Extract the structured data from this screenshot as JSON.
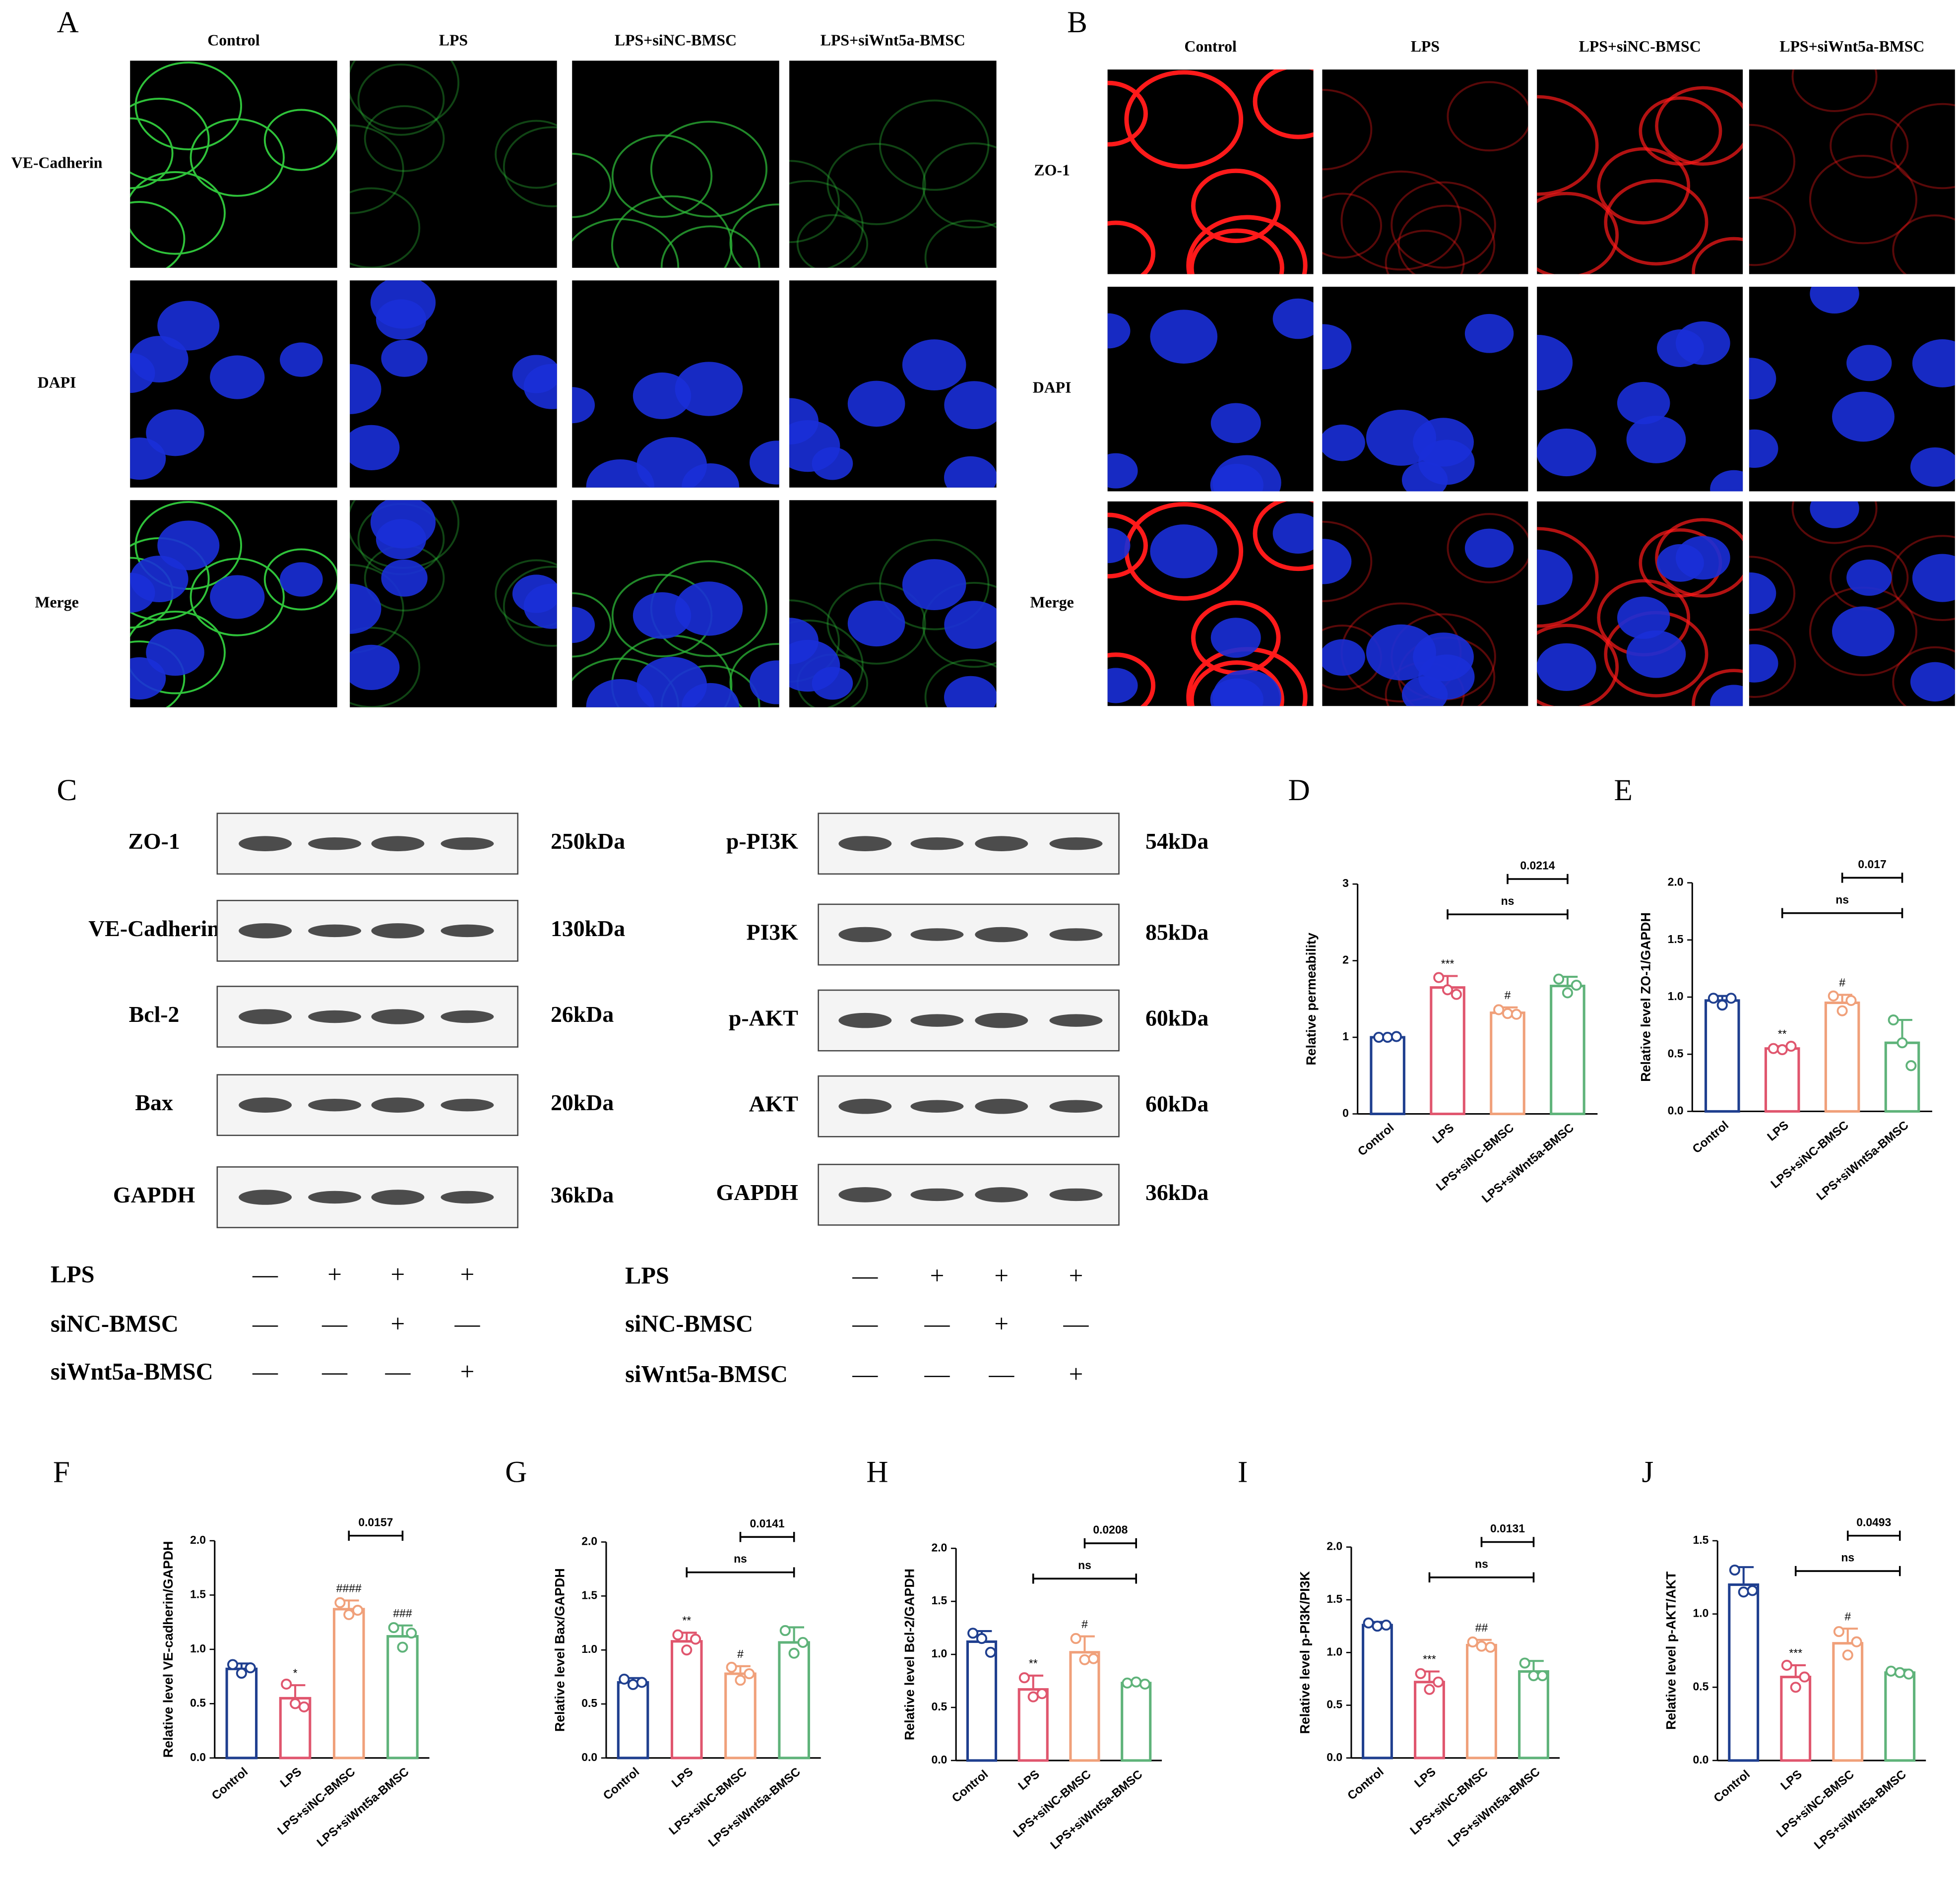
{
  "panel_a": {
    "label": "A",
    "columns": [
      "Control",
      "LPS",
      "LPS+siNC-BMSC",
      "LPS+siWnt5a-BMSC"
    ],
    "rows": [
      "VE-Cadherin",
      "DAPI",
      "Merge"
    ]
  },
  "panel_b": {
    "label": "B",
    "columns": [
      "Control",
      "LPS",
      "LPS+siNC-BMSC",
      "LPS+siWnt5a-BMSC"
    ],
    "rows": [
      "ZO-1",
      "DAPI",
      "Merge"
    ]
  },
  "panel_c": {
    "label": "C",
    "left_blots": [
      {
        "protein": "ZO-1",
        "size": "250kDa"
      },
      {
        "protein": "VE-Cadherin",
        "size": "130kDa"
      },
      {
        "protein": "Bcl-2",
        "size": "26kDa"
      },
      {
        "protein": "Bax",
        "size": "20kDa"
      },
      {
        "protein": "GAPDH",
        "size": "36kDa"
      }
    ],
    "right_blots": [
      {
        "protein": "p-PI3K",
        "size": "54kDa"
      },
      {
        "protein": "PI3K",
        "size": "85kDa"
      },
      {
        "protein": "p-AKT",
        "size": "60kDa"
      },
      {
        "protein": "AKT",
        "size": "60kDa"
      },
      {
        "protein": "GAPDH",
        "size": "36kDa"
      }
    ],
    "treatments": [
      {
        "name": "LPS",
        "marks": [
          "—",
          "+",
          "+",
          "+"
        ]
      },
      {
        "name": "siNC-BMSC",
        "marks": [
          "—",
          "—",
          "+",
          "—"
        ]
      },
      {
        "name": "siWnt5a-BMSC",
        "marks": [
          "—",
          "—",
          "—",
          "+"
        ]
      }
    ]
  },
  "chart_data": [
    {
      "type": "bar",
      "label": "D",
      "y_label": "Relative permeability",
      "categories": [
        "Control",
        "LPS",
        "LPS+siNC-BMSC",
        "LPS+siWnt5a-BMSC"
      ],
      "colors": [
        "#1f3f8f",
        "#e0566e",
        "#f0a07a",
        "#5fb37a"
      ],
      "values": [
        1.0,
        1.65,
        1.32,
        1.67
      ],
      "errors": [
        0.02,
        0.15,
        0.07,
        0.12
      ],
      "points": [
        [
          1.0,
          1.0,
          1.01
        ],
        [
          1.78,
          1.62,
          1.56
        ],
        [
          1.36,
          1.31,
          1.3
        ],
        [
          1.76,
          1.58,
          1.68
        ]
      ],
      "annotations": [
        null,
        "***",
        "#",
        null
      ],
      "comparisons": [
        {
          "between": [
            "LPS",
            "LPS+siWnt5a-BMSC"
          ],
          "label": "ns"
        },
        {
          "between": [
            "LPS+siNC-BMSC",
            "LPS+siWnt5a-BMSC"
          ],
          "label": "0.0214"
        }
      ],
      "ylim": [
        0,
        3
      ],
      "yticks": [
        0,
        1,
        2,
        3
      ]
    },
    {
      "type": "bar",
      "label": "E",
      "y_label": "Relative level ZO-1/GAPDH",
      "categories": [
        "Control",
        "LPS",
        "LPS+siNC-BMSC",
        "LPS+siWnt5a-BMSC"
      ],
      "colors": [
        "#1f3f8f",
        "#e0566e",
        "#f0a07a",
        "#5fb37a"
      ],
      "values": [
        0.97,
        0.55,
        0.95,
        0.6
      ],
      "errors": [
        0.04,
        0.02,
        0.07,
        0.2
      ],
      "points": [
        [
          0.99,
          0.93,
          0.99
        ],
        [
          0.55,
          0.54,
          0.57
        ],
        [
          1.01,
          0.88,
          0.97
        ],
        [
          0.8,
          0.6,
          0.4
        ]
      ],
      "annotations": [
        null,
        "**",
        "#",
        null
      ],
      "comparisons": [
        {
          "between": [
            "LPS",
            "LPS+siWnt5a-BMSC"
          ],
          "label": "ns"
        },
        {
          "between": [
            "LPS+siNC-BMSC",
            "LPS+siWnt5a-BMSC"
          ],
          "label": "0.017"
        }
      ],
      "ylim": [
        0,
        2
      ],
      "yticks": [
        {
          "value": 0,
          "label": "0.0"
        },
        0.5,
        {
          "value": 1,
          "label": "1.0"
        },
        1.5,
        {
          "value": 2,
          "label": "2.0"
        }
      ]
    },
    {
      "type": "bar",
      "label": "F",
      "y_label": "Relative level VE-cadherin/GAPDH",
      "categories": [
        "Control",
        "LPS",
        "LPS+siNC-BMSC",
        "LPS+siWnt5a-BMSC"
      ],
      "colors": [
        "#1f3f8f",
        "#e0566e",
        "#f0a07a",
        "#5fb37a"
      ],
      "values": [
        0.82,
        0.55,
        1.37,
        1.12
      ],
      "errors": [
        0.05,
        0.12,
        0.08,
        0.1
      ],
      "points": [
        [
          0.86,
          0.78,
          0.83
        ],
        [
          0.68,
          0.5,
          0.47
        ],
        [
          1.43,
          1.32,
          1.36
        ],
        [
          1.2,
          1.02,
          1.15
        ]
      ],
      "annotations": [
        null,
        "*",
        "####",
        "###"
      ],
      "comparisons": [
        {
          "between": [
            "LPS+siNC-BMSC",
            "LPS+siWnt5a-BMSC"
          ],
          "label": "0.0157"
        }
      ],
      "ylim": [
        0,
        2
      ],
      "yticks": [
        {
          "value": 0,
          "label": "0.0"
        },
        0.5,
        {
          "value": 1,
          "label": "1.0"
        },
        1.5,
        {
          "value": 2,
          "label": "2.0"
        }
      ]
    },
    {
      "type": "bar",
      "label": "G",
      "y_label": "Relative level Bax/GAPDH",
      "categories": [
        "Control",
        "LPS",
        "LPS+siNC-BMSC",
        "LPS+siWnt5a-BMSC"
      ],
      "colors": [
        "#1f3f8f",
        "#e0566e",
        "#f0a07a",
        "#5fb37a"
      ],
      "values": [
        0.7,
        1.08,
        0.78,
        1.07
      ],
      "errors": [
        0.04,
        0.08,
        0.07,
        0.14
      ],
      "points": [
        [
          0.73,
          0.68,
          0.7
        ],
        [
          1.14,
          1.0,
          1.1
        ],
        [
          0.84,
          0.72,
          0.78
        ],
        [
          1.18,
          0.97,
          1.07
        ]
      ],
      "annotations": [
        null,
        "**",
        "#",
        null
      ],
      "comparisons": [
        {
          "between": [
            "LPS",
            "LPS+siWnt5a-BMSC"
          ],
          "label": "ns"
        },
        {
          "between": [
            "LPS+siNC-BMSC",
            "LPS+siWnt5a-BMSC"
          ],
          "label": "0.0141"
        }
      ],
      "ylim": [
        0,
        2
      ],
      "yticks": [
        {
          "value": 0,
          "label": "0.0"
        },
        0.5,
        {
          "value": 1,
          "label": "1.0"
        },
        1.5,
        {
          "value": 2,
          "label": "2.0"
        }
      ]
    },
    {
      "type": "bar",
      "label": "H",
      "y_label": "Relative level Bcl-2/GAPDH",
      "categories": [
        "Control",
        "LPS",
        "LPS+siNC-BMSC",
        "LPS+siWnt5a-BMSC"
      ],
      "colors": [
        "#1f3f8f",
        "#e0566e",
        "#f0a07a",
        "#5fb37a"
      ],
      "values": [
        1.12,
        0.67,
        1.02,
        0.73
      ],
      "errors": [
        0.1,
        0.13,
        0.15,
        0.02
      ],
      "points": [
        [
          1.2,
          1.15,
          1.02
        ],
        [
          0.78,
          0.6,
          0.63
        ],
        [
          1.15,
          0.95,
          0.96
        ],
        [
          0.73,
          0.74,
          0.72
        ]
      ],
      "annotations": [
        null,
        "**",
        "#",
        null
      ],
      "comparisons": [
        {
          "between": [
            "LPS",
            "LPS+siWnt5a-BMSC"
          ],
          "label": "ns"
        },
        {
          "between": [
            "LPS+siNC-BMSC",
            "LPS+siWnt5a-BMSC"
          ],
          "label": "0.0208"
        }
      ],
      "ylim": [
        0,
        2
      ],
      "yticks": [
        {
          "value": 0,
          "label": "0.0"
        },
        0.5,
        {
          "value": 1,
          "label": "1.0"
        },
        1.5,
        {
          "value": 2,
          "label": "2.0"
        }
      ]
    },
    {
      "type": "bar",
      "label": "I",
      "y_label": "Relative level p-PI3K/PI3K",
      "categories": [
        "Control",
        "LPS",
        "LPS+siNC-BMSC",
        "LPS+siWnt5a-BMSC"
      ],
      "colors": [
        "#1f3f8f",
        "#e0566e",
        "#f0a07a",
        "#5fb37a"
      ],
      "values": [
        1.26,
        0.72,
        1.07,
        0.82
      ],
      "errors": [
        0.03,
        0.1,
        0.05,
        0.1
      ],
      "points": [
        [
          1.28,
          1.25,
          1.26
        ],
        [
          0.8,
          0.65,
          0.72
        ],
        [
          1.1,
          1.06,
          1.05
        ],
        [
          0.9,
          0.78,
          0.78
        ]
      ],
      "annotations": [
        null,
        "***",
        "##",
        null
      ],
      "comparisons": [
        {
          "between": [
            "LPS",
            "LPS+siWnt5a-BMSC"
          ],
          "label": "ns"
        },
        {
          "between": [
            "LPS+siNC-BMSC",
            "LPS+siWnt5a-BMSC"
          ],
          "label": "0.0131"
        }
      ],
      "ylim": [
        0,
        2
      ],
      "yticks": [
        {
          "value": 0,
          "label": "0.0"
        },
        0.5,
        {
          "value": 1,
          "label": "1.0"
        },
        1.5,
        {
          "value": 2,
          "label": "2.0"
        }
      ]
    },
    {
      "type": "bar",
      "label": "J",
      "y_label": "Relative level p-AKT/AKT",
      "categories": [
        "Control",
        "LPS",
        "LPS+siNC-BMSC",
        "LPS+siWnt5a-BMSC"
      ],
      "colors": [
        "#1f3f8f",
        "#e0566e",
        "#f0a07a",
        "#5fb37a"
      ],
      "values": [
        1.2,
        0.57,
        0.8,
        0.6
      ],
      "errors": [
        0.12,
        0.08,
        0.1,
        0.02
      ],
      "points": [
        [
          1.3,
          1.15,
          1.16
        ],
        [
          0.65,
          0.5,
          0.57
        ],
        [
          0.88,
          0.72,
          0.81
        ],
        [
          0.61,
          0.6,
          0.59
        ]
      ],
      "annotations": [
        null,
        "***",
        "#",
        null
      ],
      "comparisons": [
        {
          "between": [
            "LPS",
            "LPS+siWnt5a-BMSC"
          ],
          "label": "ns"
        },
        {
          "between": [
            "LPS+siNC-BMSC",
            "LPS+siWnt5a-BMSC"
          ],
          "label": "0.0493"
        }
      ],
      "ylim": [
        0,
        1.5
      ],
      "yticks": [
        {
          "value": 0,
          "label": "0.0"
        },
        0.5,
        {
          "value": 1,
          "label": "1.0"
        },
        1.5
      ]
    }
  ]
}
